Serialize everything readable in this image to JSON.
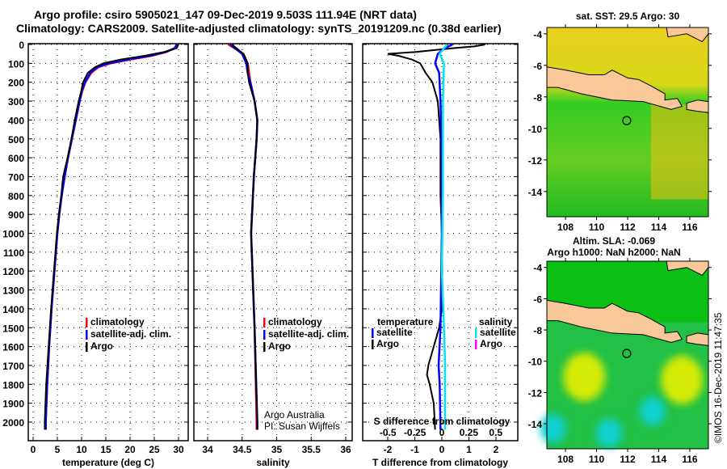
{
  "title_line1": "Argo profile: csiro 5905021_147 09-Dec-2019 9.503S 111.94E (NRT data)",
  "title_line2": "Climatology: CARS2009. Satellite-adjusted climatology: synTS_20191209.nc (0.38d earlier)",
  "colors": {
    "climatology": "#ff0000",
    "satellite": "#0000ff",
    "argo": "#000000",
    "sal_satellite": "#00e5ee",
    "sal_argo": "#ff00ff",
    "land": "#f9c898"
  },
  "chart_data": [
    {
      "type": "line",
      "name": "temperature",
      "xlabel": "temperature (deg C)",
      "xlim": [
        -1,
        31
      ],
      "xticks": [
        "0",
        "5",
        "10",
        "15",
        "20",
        "25",
        "30"
      ],
      "ylim": [
        2100,
        0
      ],
      "yticks": [
        "0",
        "100",
        "200",
        "300",
        "400",
        "500",
        "600",
        "700",
        "800",
        "900",
        "1000",
        "1100",
        "1200",
        "1300",
        "1400",
        "1500",
        "1600",
        "1700",
        "1800",
        "1900",
        "2000"
      ],
      "legend": [
        "climatology",
        "satellite-adj. clim.",
        "Argo"
      ],
      "series": [
        {
          "name": "climatology",
          "color": "#ff0000",
          "points": [
            [
              0,
              29.8
            ],
            [
              20,
              29.2
            ],
            [
              40,
              27.5
            ],
            [
              60,
              24.5
            ],
            [
              80,
              20
            ],
            [
              100,
              16
            ],
            [
              120,
              13.5
            ],
            [
              150,
              12
            ],
            [
              200,
              10.8
            ],
            [
              250,
              10.1
            ],
            [
              300,
              9.6
            ],
            [
              400,
              8.8
            ],
            [
              500,
              8
            ],
            [
              600,
              7.2
            ],
            [
              700,
              6.5
            ],
            [
              800,
              5.9
            ],
            [
              900,
              5.4
            ],
            [
              1000,
              5
            ],
            [
              1200,
              4.4
            ],
            [
              1400,
              3.8
            ],
            [
              1600,
              3.3
            ],
            [
              1800,
              2.9
            ],
            [
              2000,
              2.6
            ],
            [
              2040,
              2.6
            ]
          ]
        },
        {
          "name": "satellite-adj. clim.",
          "color": "#0000ff",
          "points": [
            [
              0,
              29.6
            ],
            [
              20,
              29.2
            ],
            [
              40,
              27.3
            ],
            [
              60,
              24
            ],
            [
              80,
              19.5
            ],
            [
              100,
              15.5
            ],
            [
              120,
              13.2
            ],
            [
              150,
              11.8
            ],
            [
              200,
              10.7
            ],
            [
              250,
              10
            ],
            [
              300,
              9.6
            ],
            [
              400,
              8.8
            ],
            [
              500,
              8
            ],
            [
              600,
              7.2
            ],
            [
              700,
              6.5
            ],
            [
              800,
              5.9
            ],
            [
              900,
              5.4
            ],
            [
              1000,
              5
            ],
            [
              1200,
              4.4
            ],
            [
              1400,
              3.8
            ],
            [
              1600,
              3.3
            ],
            [
              1800,
              2.9
            ],
            [
              2000,
              2.6
            ],
            [
              2040,
              2.6
            ]
          ]
        },
        {
          "name": "Argo",
          "color": "#000000",
          "points": [
            [
              0,
              30
            ],
            [
              20,
              29.6
            ],
            [
              40,
              27
            ],
            [
              60,
              23
            ],
            [
              80,
              18
            ],
            [
              100,
              14.5
            ],
            [
              120,
              12.8
            ],
            [
              150,
              11.3
            ],
            [
              200,
              10.3
            ],
            [
              250,
              9.9
            ],
            [
              300,
              9.4
            ],
            [
              400,
              8.6
            ],
            [
              500,
              7.9
            ],
            [
              600,
              7.1
            ],
            [
              700,
              6.2
            ],
            [
              800,
              5.8
            ],
            [
              900,
              5.3
            ],
            [
              1000,
              4.9
            ],
            [
              1200,
              4.3
            ],
            [
              1400,
              3.7
            ],
            [
              1600,
              3.2
            ],
            [
              1800,
              2.7
            ],
            [
              2000,
              2.4
            ],
            [
              2040,
              2.4
            ]
          ]
        }
      ]
    },
    {
      "type": "line",
      "name": "salinity",
      "xlabel": "salinity",
      "xlim": [
        33.85,
        36.15
      ],
      "xticks": [
        "34",
        "34.5",
        "35",
        "35.5",
        "36"
      ],
      "ylim": [
        2100,
        0
      ],
      "legend": [
        "climatology",
        "satellite-adj. clim.",
        "Argo"
      ],
      "credit": [
        "Argo Australia",
        "PI: Susan Wijffels"
      ],
      "series": [
        {
          "name": "climatology",
          "color": "#ff0000",
          "points": [
            [
              0,
              34.3
            ],
            [
              50,
              34.52
            ],
            [
              100,
              34.58
            ],
            [
              150,
              34.6
            ],
            [
              200,
              34.62
            ],
            [
              300,
              34.68
            ],
            [
              400,
              34.72
            ],
            [
              500,
              34.71
            ],
            [
              700,
              34.67
            ],
            [
              1000,
              34.63
            ],
            [
              1500,
              34.68
            ],
            [
              2000,
              34.71
            ],
            [
              2040,
              34.71
            ]
          ]
        },
        {
          "name": "satellite-adj. clim.",
          "color": "#0000ff",
          "points": [
            [
              0,
              34.33
            ],
            [
              50,
              34.5
            ],
            [
              100,
              34.56
            ],
            [
              150,
              34.58
            ],
            [
              200,
              34.62
            ],
            [
              300,
              34.68
            ],
            [
              400,
              34.72
            ],
            [
              500,
              34.71
            ],
            [
              700,
              34.67
            ],
            [
              1000,
              34.63
            ],
            [
              1500,
              34.68
            ],
            [
              2000,
              34.72
            ],
            [
              2040,
              34.72
            ]
          ]
        },
        {
          "name": "Argo",
          "color": "#000000",
          "points": [
            [
              0,
              34.35
            ],
            [
              50,
              34.52
            ],
            [
              100,
              34.58
            ],
            [
              150,
              34.58
            ],
            [
              200,
              34.6
            ],
            [
              300,
              34.68
            ],
            [
              400,
              34.72
            ],
            [
              500,
              34.71
            ],
            [
              700,
              34.67
            ],
            [
              1000,
              34.63
            ],
            [
              1500,
              34.68
            ],
            [
              2000,
              34.72
            ],
            [
              2040,
              34.72
            ]
          ]
        }
      ]
    },
    {
      "type": "line",
      "name": "difference",
      "xlabel": "T difference from climatology",
      "x2label": "S difference from climatology",
      "xlim": [
        -3,
        3
      ],
      "xticks": [
        "-2",
        "-1",
        "0",
        "1",
        "2"
      ],
      "x2lim": [
        -0.75,
        0.75
      ],
      "x2ticks": [
        "-0.5",
        "-0.25",
        "0",
        "0.25",
        "0.5"
      ],
      "ylim": [
        2100,
        0
      ],
      "legend_t": {
        "head": "temperature",
        "items": [
          "satellite",
          "Argo"
        ]
      },
      "legend_s": {
        "head": "salinity",
        "items": [
          "satellite",
          "Argo"
        ]
      },
      "series": [
        {
          "name": "T Argo",
          "color": "#000000",
          "axis": "T",
          "points": [
            [
              0,
              1.6
            ],
            [
              10,
              1.2
            ],
            [
              20,
              0.4
            ],
            [
              30,
              -0.3
            ],
            [
              40,
              -1
            ],
            [
              50,
              -2
            ],
            [
              60,
              -1.6
            ],
            [
              80,
              -1.1
            ],
            [
              100,
              -0.8
            ],
            [
              150,
              -0.6
            ],
            [
              200,
              -0.35
            ],
            [
              300,
              -0.15
            ],
            [
              500,
              -0.05
            ],
            [
              800,
              -0.05
            ],
            [
              1000,
              0
            ],
            [
              1300,
              0.02
            ],
            [
              1400,
              0
            ],
            [
              1500,
              -0.1
            ],
            [
              1600,
              -0.3
            ],
            [
              1700,
              -0.5
            ],
            [
              1750,
              -0.55
            ],
            [
              1800,
              -0.45
            ],
            [
              1900,
              -0.3
            ],
            [
              2040,
              -0.25
            ]
          ]
        },
        {
          "name": "T satellite",
          "color": "#0000ff",
          "axis": "T",
          "points": [
            [
              0,
              0.4
            ],
            [
              20,
              0.1
            ],
            [
              50,
              -0.15
            ],
            [
              100,
              -0.25
            ],
            [
              150,
              -0.1
            ],
            [
              300,
              -0.05
            ],
            [
              600,
              0
            ],
            [
              1000,
              0
            ],
            [
              1500,
              -0.05
            ],
            [
              1700,
              -0.12
            ],
            [
              1800,
              -0.08
            ],
            [
              2040,
              -0.05
            ]
          ]
        },
        {
          "name": "S satellite",
          "color": "#00e5ee",
          "axis": "S",
          "points": [
            [
              0,
              0.05
            ],
            [
              20,
              0.02
            ],
            [
              50,
              -0.02
            ],
            [
              100,
              0.02
            ],
            [
              300,
              0.01
            ],
            [
              800,
              0.01
            ],
            [
              1200,
              0.0
            ],
            [
              1500,
              0.02
            ],
            [
              1700,
              0.03
            ],
            [
              2040,
              0.03
            ]
          ]
        }
      ]
    },
    {
      "type": "heatmap",
      "name": "sst-map",
      "title": "sat. SST: 29.5 Argo: 30",
      "xticks": [
        "108",
        "110",
        "112",
        "114",
        "116"
      ],
      "yticks": [
        "-4",
        "-6",
        "-8",
        "-10",
        "-12",
        "-14"
      ],
      "xlim": [
        106.8,
        117.2
      ],
      "ylim": [
        -15.6,
        -3.6
      ],
      "argo_position": [
        111.94,
        -9.503
      ]
    },
    {
      "type": "heatmap",
      "name": "sla-map",
      "title": "Altim. SLA: -0.069",
      "subtitle": "Argo h1000: NaN h2000: NaN",
      "xticks": [
        "108",
        "110",
        "112",
        "114",
        "116"
      ],
      "yticks": [
        "-4",
        "-6",
        "-8",
        "-10",
        "-12",
        "-14"
      ],
      "xlim": [
        106.8,
        117.2
      ],
      "ylim": [
        -15.6,
        -3.6
      ],
      "argo_position": [
        111.94,
        -9.503
      ]
    }
  ],
  "footer_stamp": "©IMOS 16-Dec-2019 11:47:35"
}
